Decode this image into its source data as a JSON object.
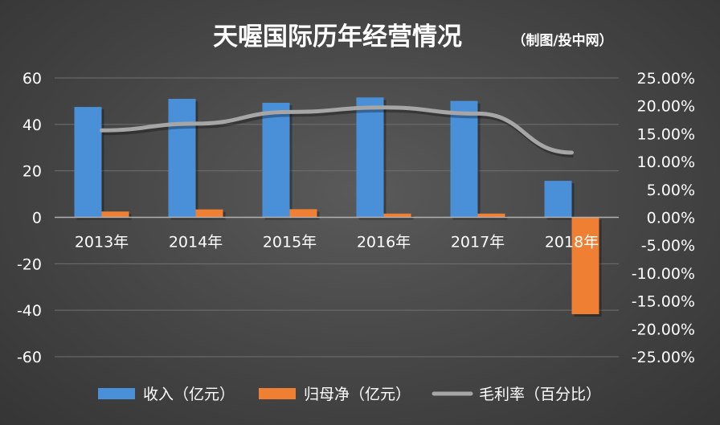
{
  "chart_data": {
    "type": "bar",
    "title": "天喔国际历年经营情况",
    "subtitle": "（制图/投中网）",
    "categories": [
      "2013年",
      "2014年",
      "2015年",
      "2016年",
      "2017年",
      "2018年"
    ],
    "series": [
      {
        "name": "收入（亿元）",
        "type": "bar",
        "axis": "left",
        "color": "#4a90d9",
        "values": [
          47.5,
          51,
          49.3,
          51.6,
          50.1,
          15.7
        ]
      },
      {
        "name": "归母净（亿元）",
        "type": "bar",
        "axis": "left",
        "color": "#ef7f32",
        "values": [
          2.5,
          3.4,
          3.5,
          1.6,
          1.6,
          -41.7
        ]
      },
      {
        "name": "毛利率（百分比）",
        "type": "line",
        "axis": "right",
        "color": "#a6a6a6",
        "values": [
          15.6,
          16.8,
          18.9,
          19.7,
          18.6,
          11.6
        ]
      }
    ],
    "y_left": {
      "ylim": [
        -60,
        60
      ],
      "ticks": [
        60,
        40,
        20,
        0,
        -20,
        -40,
        -60
      ],
      "tick_labels": [
        "60",
        "40",
        "20",
        "0",
        "-20",
        "-40",
        "-60"
      ]
    },
    "y_right": {
      "ylim": [
        -25,
        25
      ],
      "ticks": [
        25,
        20,
        15,
        10,
        5,
        0,
        -5,
        -10,
        -15,
        -20,
        -25
      ],
      "tick_labels": [
        "25.00%",
        "20.00%",
        "15.00%",
        "10.00%",
        "5.00%",
        "0.00%",
        "-5.00%",
        "-10.00%",
        "-15.00%",
        "-20.00%",
        "-25.00%"
      ]
    },
    "grid": true,
    "legend_position": "bottom",
    "background": "#464646",
    "grid_color": "#707070",
    "text_color": "#ffffff"
  }
}
